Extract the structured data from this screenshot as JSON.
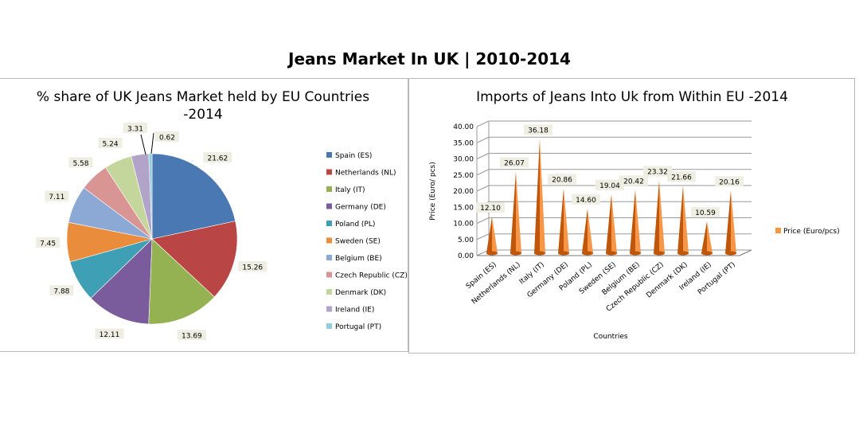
{
  "page": {
    "title": "Jeans Market In UK | 2010-2014"
  },
  "chart_data": [
    {
      "type": "pie",
      "title": "% share of UK Jeans Market held by EU Countries -2014",
      "title_line1": "% share of UK Jeans Market held by EU Countries",
      "title_line2": "-2014",
      "legend_position": "right",
      "categories": [
        "Spain (ES)",
        "Netherlands (NL)",
        "Italy (IT)",
        "Germany (DE)",
        "Poland (PL)",
        "Sweden (SE)",
        "Belgium (BE)",
        "Czech Republic (CZ)",
        "Denmark (DK)",
        "Ireland (IE)",
        "Portugal (PT)"
      ],
      "values": [
        21.62,
        15.26,
        13.69,
        12.11,
        7.88,
        7.45,
        7.11,
        5.58,
        5.24,
        3.31,
        0.62
      ],
      "labels": [
        "21.62",
        "15.26",
        "13.69",
        "12.11",
        "7.88",
        "7.45",
        "7.11",
        "5.58",
        "5.24",
        "3.31",
        "0.62"
      ],
      "colors": [
        "#4a78b2",
        "#b94645",
        "#94b251",
        "#7a5b9b",
        "#3f9fb4",
        "#e98d3d",
        "#8ca9d6",
        "#d99594",
        "#c4d69c",
        "#b2a3c9",
        "#93cddd"
      ]
    },
    {
      "type": "bar",
      "title": "Imports of Jeans Into Uk from Within EU -2014",
      "xlabel": "Countries",
      "ylabel": "Price (Euro/ pcs)",
      "ylim": [
        0,
        40
      ],
      "yticks": [
        "0.00",
        "5.00",
        "10.00",
        "15.00",
        "20.00",
        "25.00",
        "30.00",
        "35.00",
        "40.00"
      ],
      "grid": true,
      "legend_position": "right",
      "categories": [
        "Spain (ES)",
        "Netherlands (NL)",
        "Italy (IT)",
        "Germany (DE)",
        "Poland (PL)",
        "Sweden (SE)",
        "Belgium (BE)",
        "Czech Republic (CZ)",
        "Denmark (DK)",
        "Ireland (IE)",
        "Portugal (PT)"
      ],
      "series": [
        {
          "name": "Price (Euro/pcs)",
          "values": [
            12.1,
            26.07,
            36.18,
            20.86,
            14.6,
            19.04,
            20.42,
            23.32,
            21.66,
            10.59,
            20.16
          ]
        }
      ],
      "labels": [
        "12.10",
        "26.07",
        "36.18",
        "20.86",
        "14.60",
        "19.04",
        "20.42",
        "23.32",
        "21.66",
        "10.59",
        "20.16"
      ],
      "colors": {
        "bar_dark": "#c0560a",
        "bar_light": "#f79646",
        "grid": "#9a9a9a"
      }
    }
  ]
}
